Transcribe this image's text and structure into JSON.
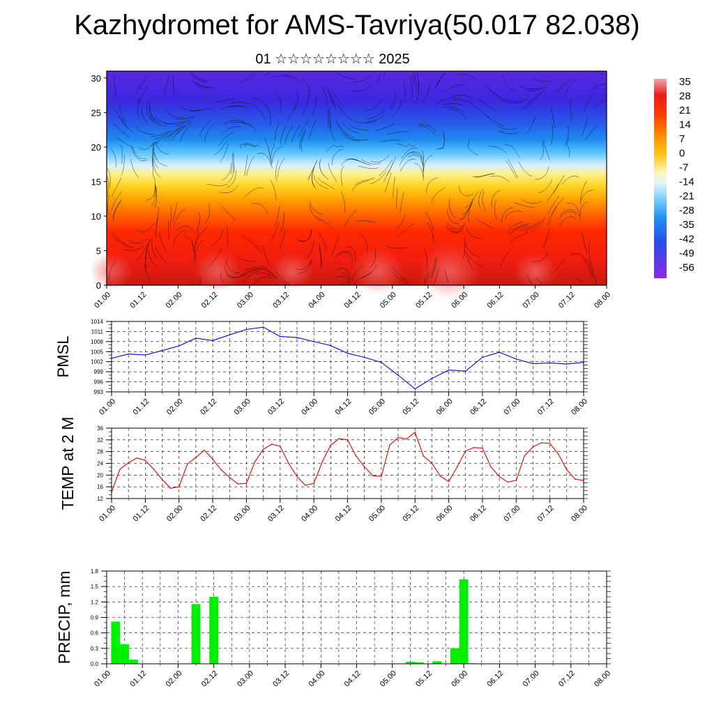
{
  "title": "Kazhydromet for AMS-Tavriya(50.017 82.038)",
  "subtitle": "01 ☆☆☆☆☆☆☆☆ 2025",
  "time_labels": [
    "01.00",
    "01.12",
    "02.00",
    "02.12",
    "03.00",
    "03.12",
    "04.00",
    "04.12",
    "05.00",
    "05.12",
    "06.00",
    "06.12",
    "07.00",
    "07.12",
    "08.00"
  ],
  "colorbar": {
    "labels": [
      "35",
      "28",
      "21",
      "14",
      "7",
      "0",
      "-7",
      "-14",
      "-21",
      "-28",
      "-35",
      "-42",
      "-49",
      "-56"
    ],
    "colors": [
      "#f2a8a8",
      "#ee2a1f",
      "#ff2b00",
      "#ff6a00",
      "#ff9d00",
      "#ffce1f",
      "#fff1a0",
      "#e8f4ff",
      "#8fd3ff",
      "#28a8f0",
      "#1f78e8",
      "#3048e0",
      "#4a2fe8",
      "#8a2be6"
    ]
  },
  "chart_data": [
    {
      "type": "heatmap",
      "title": "",
      "xlabel": "",
      "ylabel": "",
      "x": [
        "01.00",
        "01.12",
        "02.00",
        "02.12",
        "03.00",
        "03.12",
        "04.00",
        "04.12",
        "05.00",
        "05.12",
        "06.00",
        "06.12",
        "07.00",
        "07.12",
        "08.00"
      ],
      "ylim": [
        0,
        31
      ],
      "yticks": [
        0,
        5,
        10,
        15,
        20,
        25,
        30
      ],
      "levels": [
        {
          "y_from": 0,
          "y_to": 7,
          "value": 28
        },
        {
          "y_from": 7,
          "y_to": 10,
          "value": 21
        },
        {
          "y_from": 10,
          "y_to": 12,
          "value": 14
        },
        {
          "y_from": 12,
          "y_to": 14,
          "value": 7
        },
        {
          "y_from": 14,
          "y_to": 16,
          "value": 0
        },
        {
          "y_from": 16,
          "y_to": 17.5,
          "value": -7
        },
        {
          "y_from": 17.5,
          "y_to": 19,
          "value": -14
        },
        {
          "y_from": 19,
          "y_to": 21,
          "value": -28
        },
        {
          "y_from": 21,
          "y_to": 23,
          "value": -42
        },
        {
          "y_from": 23,
          "y_to": 27,
          "value": -49
        },
        {
          "y_from": 27,
          "y_to": 31,
          "value": -56
        }
      ]
    },
    {
      "type": "line",
      "ylabel": "PMSL",
      "ylim": [
        993,
        1014
      ],
      "yticks": [
        993,
        996,
        999,
        1002,
        1005,
        1008,
        1011,
        1014
      ],
      "color": "#0000dd",
      "x_range": [
        0,
        14
      ],
      "x": [
        0,
        0.5,
        1,
        1.5,
        2,
        2.5,
        3,
        3.5,
        4,
        4.5,
        5,
        5.5,
        6,
        6.5,
        7,
        7.5,
        8,
        8.5,
        9,
        9.5,
        10,
        10.5,
        11,
        11.5,
        12,
        12.5,
        13,
        13.5,
        14
      ],
      "values": [
        1003,
        1004.3,
        1004,
        1005.3,
        1006.7,
        1009,
        1008.3,
        1010,
        1011.6,
        1012.3,
        1009.5,
        1009.2,
        1008,
        1006.8,
        1004.5,
        1003.3,
        1001.8,
        998,
        993.9,
        997,
        999.5,
        999.2,
        1003.3,
        1004.8,
        1002.8,
        1001.4,
        1001.6,
        1001.3,
        1001.8
      ]
    },
    {
      "type": "line",
      "ylabel": "TEMP at 2 M",
      "ylim": [
        12,
        36
      ],
      "yticks": [
        12,
        16,
        20,
        24,
        28,
        32,
        36
      ],
      "color": "#dd0000",
      "x_range": [
        0,
        14
      ],
      "x": [
        0,
        0.25,
        0.5,
        0.75,
        1,
        1.25,
        1.5,
        1.75,
        2,
        2.25,
        2.5,
        2.75,
        3,
        3.25,
        3.5,
        3.75,
        4,
        4.25,
        4.5,
        4.75,
        5,
        5.25,
        5.5,
        5.75,
        6,
        6.25,
        6.5,
        6.75,
        7,
        7.25,
        7.5,
        7.75,
        8,
        8.25,
        8.5,
        8.75,
        9,
        9.25,
        9.5,
        9.75,
        10,
        10.25,
        10.5,
        10.75,
        11,
        11.25,
        11.5,
        11.75,
        12,
        12.25,
        12.5,
        12.75,
        13,
        13.25,
        13.5,
        13.75,
        14
      ],
      "values": [
        14.2,
        22,
        24.2,
        25.8,
        25,
        22,
        18.5,
        15.5,
        16,
        23.8,
        26,
        28.5,
        25.4,
        21.8,
        19.2,
        17,
        17.2,
        24.5,
        28.8,
        30.5,
        29.8,
        24,
        19.5,
        16.5,
        17.2,
        24.5,
        30.2,
        32.4,
        32,
        26.5,
        22.8,
        19.8,
        19.5,
        30.2,
        32.8,
        32.3,
        34.6,
        26.5,
        24.1,
        19.6,
        17.8,
        22.8,
        28.2,
        29.4,
        29.2,
        22.8,
        19.5,
        17.6,
        18.2,
        26.6,
        29.6,
        31,
        30.8,
        27.2,
        21.8,
        18.6,
        18.2
      ]
    },
    {
      "type": "bar",
      "ylabel": "PRECIP, mm",
      "ylim": [
        0,
        1.8
      ],
      "yticks": [
        "0.0",
        "0.3",
        "0.6",
        "0.9",
        "1.2",
        "1.5",
        "1.8"
      ],
      "color": "#00ee00",
      "x_range": [
        0,
        14
      ],
      "bar_width": 0.25,
      "x": [
        0.25,
        0.5,
        0.75,
        2.5,
        3,
        8.5,
        8.75,
        9.25,
        9.75,
        10,
        10.25
      ],
      "values": [
        0.82,
        0.38,
        0.08,
        1.16,
        1.3,
        0.04,
        0.03,
        0.05,
        0.3,
        1.64,
        0.01
      ]
    }
  ]
}
